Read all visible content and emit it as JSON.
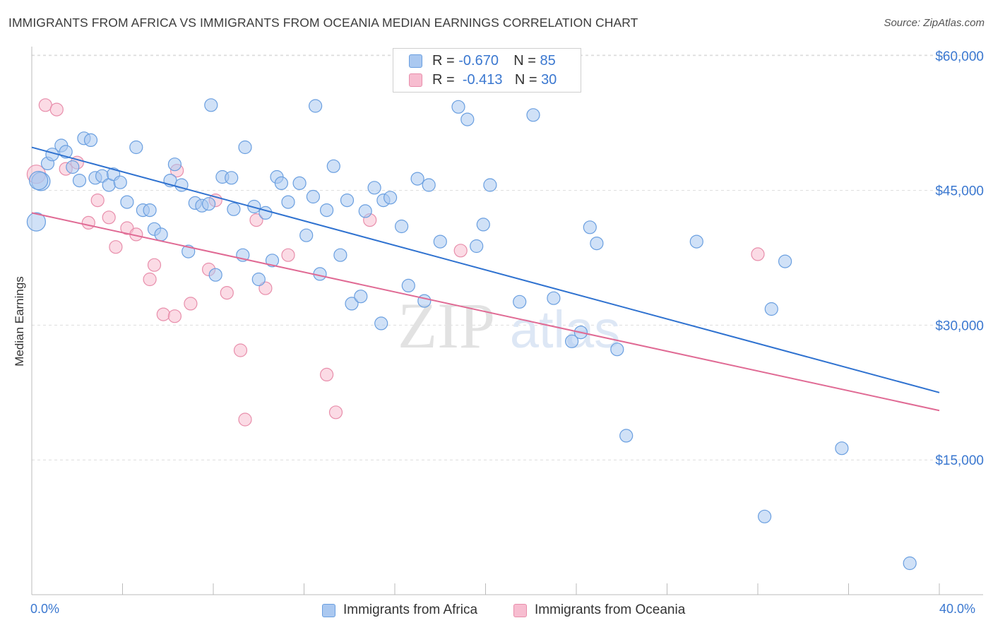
{
  "title": "IMMIGRANTS FROM AFRICA VS IMMIGRANTS FROM OCEANIA MEDIAN EARNINGS CORRELATION CHART",
  "source": "Source: ZipAtlas.com",
  "legend": {
    "africa": {
      "r_label": "R =",
      "r_value": "-0.670",
      "n_label": "N =",
      "n_value": "85"
    },
    "oceania": {
      "r_label": "R =",
      "r_value": "-0.413",
      "n_label": "N =",
      "n_value": "30"
    }
  },
  "bottom_legend": {
    "africa": "Immigrants from Africa",
    "oceania": "Immigrants from Oceania"
  },
  "watermark": {
    "zip": "ZIP",
    "atlas": "atlas"
  },
  "colors": {
    "africa_fill": "#aac8f0",
    "africa_stroke": "#6a9fe0",
    "africa_line": "#2f72d0",
    "oceania_fill": "#f7bdd0",
    "oceania_stroke": "#e88eab",
    "oceania_line": "#e06a94",
    "axis_text": "#3b78d0",
    "grid": "#dddddd"
  },
  "chart_data": {
    "type": "scatter",
    "title": "IMMIGRANTS FROM AFRICA VS IMMIGRANTS FROM OCEANIA MEDIAN EARNINGS CORRELATION CHART",
    "xlabel": "",
    "ylabel": "Median Earnings",
    "xlim": [
      0,
      40
    ],
    "ylim": [
      0,
      63000
    ],
    "x_tick_labels": [
      "0.0%",
      "40.0%"
    ],
    "y_ticks": [
      15000,
      30000,
      45000,
      60000
    ],
    "y_tick_labels": [
      "$15,000",
      "$30,000",
      "$45,000",
      "$60,000"
    ],
    "grid": true,
    "legend_position": "top-center",
    "series": [
      {
        "name": "Immigrants from Africa",
        "trend": {
          "x": [
            0,
            40
          ],
          "y": [
            49800,
            22500
          ]
        },
        "points": [
          [
            0.2,
            41500
          ],
          [
            0.4,
            46000
          ],
          [
            0.7,
            48000
          ],
          [
            0.9,
            49000
          ],
          [
            1.3,
            50000
          ],
          [
            1.5,
            49300
          ],
          [
            1.8,
            47600
          ],
          [
            2.1,
            46100
          ],
          [
            2.3,
            50800
          ],
          [
            2.6,
            50600
          ],
          [
            2.8,
            46400
          ],
          [
            3.1,
            46600
          ],
          [
            3.4,
            45600
          ],
          [
            3.6,
            46800
          ],
          [
            3.9,
            45900
          ],
          [
            4.2,
            43700
          ],
          [
            4.6,
            49800
          ],
          [
            4.9,
            42800
          ],
          [
            5.2,
            42800
          ],
          [
            5.4,
            40700
          ],
          [
            5.7,
            40100
          ],
          [
            6.1,
            46100
          ],
          [
            6.3,
            47900
          ],
          [
            6.6,
            45600
          ],
          [
            6.9,
            38200
          ],
          [
            7.2,
            43600
          ],
          [
            7.5,
            43300
          ],
          [
            7.8,
            43500
          ],
          [
            7.9,
            54500
          ],
          [
            8.1,
            35600
          ],
          [
            8.4,
            46500
          ],
          [
            8.8,
            46400
          ],
          [
            8.9,
            42900
          ],
          [
            9.3,
            37800
          ],
          [
            9.4,
            49800
          ],
          [
            9.8,
            43200
          ],
          [
            10.0,
            35100
          ],
          [
            10.3,
            42500
          ],
          [
            10.6,
            37200
          ],
          [
            10.8,
            46500
          ],
          [
            11.0,
            45800
          ],
          [
            11.3,
            43700
          ],
          [
            11.8,
            45800
          ],
          [
            12.1,
            40000
          ],
          [
            12.4,
            44300
          ],
          [
            12.5,
            54400
          ],
          [
            12.7,
            35700
          ],
          [
            13.0,
            42800
          ],
          [
            13.3,
            47700
          ],
          [
            13.6,
            37800
          ],
          [
            13.9,
            43900
          ],
          [
            14.1,
            32400
          ],
          [
            14.5,
            33200
          ],
          [
            14.7,
            42700
          ],
          [
            15.1,
            45300
          ],
          [
            15.4,
            30200
          ],
          [
            15.5,
            43900
          ],
          [
            15.8,
            44200
          ],
          [
            16.3,
            41000
          ],
          [
            16.6,
            34400
          ],
          [
            17.0,
            46300
          ],
          [
            17.3,
            32700
          ],
          [
            17.5,
            45600
          ],
          [
            18.0,
            39300
          ],
          [
            18.8,
            54300
          ],
          [
            19.2,
            52900
          ],
          [
            19.6,
            38800
          ],
          [
            19.9,
            41200
          ],
          [
            20.2,
            45600
          ],
          [
            21.5,
            32600
          ],
          [
            22.1,
            53400
          ],
          [
            23.0,
            33000
          ],
          [
            23.8,
            28200
          ],
          [
            24.2,
            29200
          ],
          [
            24.6,
            40900
          ],
          [
            24.9,
            39100
          ],
          [
            25.8,
            27300
          ],
          [
            26.2,
            17700
          ],
          [
            29.3,
            39300
          ],
          [
            32.3,
            8700
          ],
          [
            32.6,
            31800
          ],
          [
            33.2,
            37100
          ],
          [
            35.7,
            16300
          ],
          [
            38.7,
            3500
          ],
          [
            0.3,
            46100
          ]
        ]
      },
      {
        "name": "Immigrants from Oceania",
        "trend": {
          "x": [
            0,
            40
          ],
          "y": [
            42500,
            20500
          ]
        },
        "points": [
          [
            0.2,
            46800
          ],
          [
            0.6,
            54500
          ],
          [
            1.1,
            54000
          ],
          [
            1.5,
            47400
          ],
          [
            2.0,
            48100
          ],
          [
            2.5,
            41400
          ],
          [
            2.9,
            43900
          ],
          [
            3.4,
            42000
          ],
          [
            3.7,
            38700
          ],
          [
            4.2,
            40800
          ],
          [
            4.6,
            40100
          ],
          [
            5.2,
            35100
          ],
          [
            5.4,
            36700
          ],
          [
            5.8,
            31200
          ],
          [
            6.3,
            31000
          ],
          [
            6.4,
            47200
          ],
          [
            7.0,
            32400
          ],
          [
            7.8,
            36200
          ],
          [
            8.1,
            43900
          ],
          [
            8.6,
            33600
          ],
          [
            9.2,
            27200
          ],
          [
            9.4,
            19500
          ],
          [
            9.9,
            41700
          ],
          [
            10.3,
            34100
          ],
          [
            11.3,
            37800
          ],
          [
            13.0,
            24500
          ],
          [
            13.4,
            20300
          ],
          [
            14.9,
            41700
          ],
          [
            18.9,
            38300
          ],
          [
            32.0,
            37900
          ]
        ]
      }
    ]
  }
}
